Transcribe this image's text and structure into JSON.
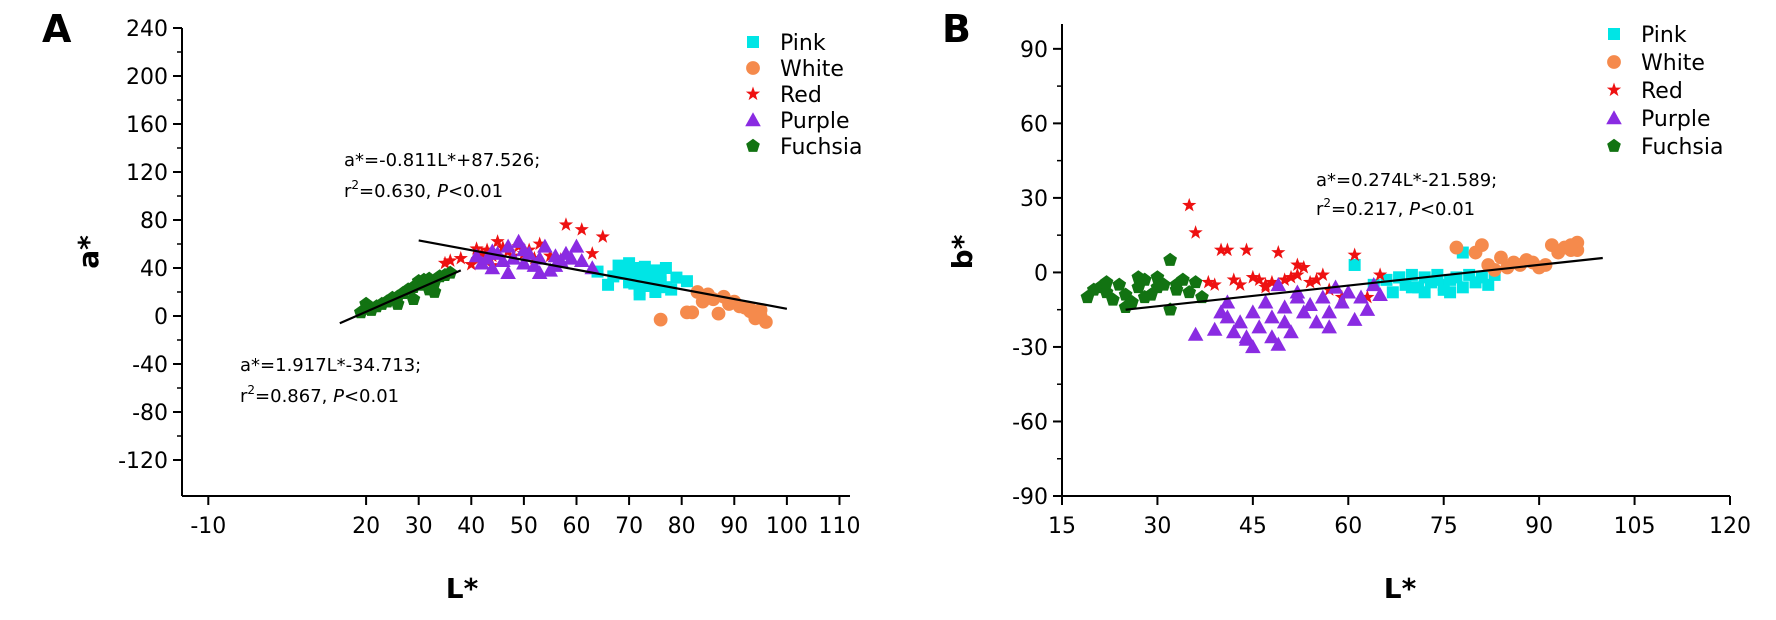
{
  "chart_data": [
    {
      "type": "scatter",
      "panel_label": "A",
      "xlabel": "L*",
      "ylabel": "a*",
      "xlim": [
        -15,
        112
      ],
      "ylim": [
        -150,
        240
      ],
      "xticks": [
        "-10",
        "20",
        "30",
        "40",
        "50",
        "60",
        "70",
        "80",
        "90",
        "100",
        "110"
      ],
      "xtick_values": [
        -10,
        20,
        30,
        40,
        50,
        60,
        70,
        80,
        90,
        100,
        110
      ],
      "yticks": [
        "240",
        "200",
        "160",
        "120",
        "80",
        "40",
        "0",
        "-40",
        "-80",
        "-120"
      ],
      "ytick_values": [
        240,
        200,
        160,
        120,
        80,
        40,
        0,
        -40,
        -80,
        -120
      ],
      "legend": {
        "position": "top-right"
      },
      "series": [
        {
          "name": "Pink",
          "marker": "square",
          "color": "#00e5e5",
          "x": [
            64,
            66,
            68,
            69,
            70,
            70,
            71,
            71,
            72,
            72,
            73,
            73,
            74,
            74,
            75,
            75,
            76,
            76,
            77,
            78,
            79,
            81,
            67,
            72,
            74,
            70,
            75,
            73,
            71,
            77
          ],
          "y": [
            37,
            26,
            42,
            35,
            44,
            30,
            40,
            27,
            38,
            22,
            32,
            41,
            36,
            25,
            30,
            38,
            34,
            28,
            40,
            22,
            32,
            29,
            33,
            18,
            26,
            28,
            20,
            36,
            34,
            24
          ]
        },
        {
          "name": "White",
          "marker": "circle",
          "color": "#f58a4c",
          "x": [
            76,
            81,
            82,
            83,
            84,
            85,
            86,
            87,
            88,
            89,
            90,
            91,
            92,
            93,
            94,
            95,
            95,
            96,
            94,
            93
          ],
          "y": [
            -3,
            3,
            3,
            20,
            12,
            18,
            14,
            2,
            16,
            10,
            12,
            8,
            7,
            4,
            3,
            5,
            0,
            -5,
            -2,
            6
          ]
        },
        {
          "name": "Red",
          "marker": "star",
          "color": "#ee1111",
          "x": [
            35,
            36,
            38,
            40,
            41,
            42,
            43,
            44,
            45,
            46,
            47,
            48,
            49,
            50,
            51,
            52,
            53,
            55,
            58,
            61,
            63,
            65,
            57,
            44
          ],
          "y": [
            44,
            46,
            48,
            43,
            56,
            52,
            55,
            50,
            62,
            57,
            54,
            50,
            58,
            52,
            55,
            48,
            60,
            50,
            76,
            72,
            52,
            66,
            47,
            42
          ]
        },
        {
          "name": "Purple",
          "marker": "triangle",
          "color": "#8a2be2",
          "x": [
            41,
            42,
            43,
            44,
            45,
            46,
            47,
            48,
            49,
            50,
            51,
            52,
            53,
            54,
            55,
            56,
            57,
            58,
            59,
            60,
            61,
            63,
            47,
            50,
            53,
            44,
            56
          ],
          "y": [
            50,
            44,
            48,
            54,
            52,
            46,
            58,
            48,
            62,
            44,
            52,
            42,
            48,
            58,
            38,
            50,
            46,
            52,
            48,
            58,
            46,
            40,
            36,
            55,
            36,
            40,
            42
          ]
        },
        {
          "name": "Fuchsia",
          "marker": "pentagon",
          "color": "#127312",
          "x": [
            19,
            20,
            21,
            22,
            23,
            24,
            25,
            26,
            27,
            28,
            29,
            30,
            30,
            31,
            32,
            33,
            33,
            34,
            35,
            36,
            29,
            31,
            32,
            26,
            24,
            20
          ],
          "y": [
            3,
            10,
            5,
            8,
            10,
            12,
            15,
            16,
            19,
            22,
            24,
            26,
            29,
            30,
            31,
            28,
            20,
            33,
            34,
            36,
            14,
            26,
            22,
            10,
            12,
            6
          ]
        }
      ],
      "fit_lines": [
        {
          "x": [
            15,
            38
          ],
          "y": [
            -6,
            38
          ]
        },
        {
          "x": [
            30,
            100
          ],
          "y": [
            63,
            6
          ]
        }
      ],
      "annotations": [
        {
          "line1": "a*=-0.811L*+87.526;",
          "line2_pre": "r",
          "line2_sup": "2",
          "line2_mid": "=0.630, ",
          "line2_it": "P",
          "line2_post": "<0.01"
        },
        {
          "line1": "a*=1.917L*-34.713;",
          "line2_pre": "r",
          "line2_sup": "2",
          "line2_mid": "=0.867, ",
          "line2_it": "P",
          "line2_post": "<0.01"
        }
      ]
    },
    {
      "type": "scatter",
      "panel_label": "B",
      "xlabel": "L*",
      "ylabel": "b*",
      "xlim": [
        15,
        120
      ],
      "ylim": [
        -90,
        100
      ],
      "xticks": [
        "15",
        "30",
        "45",
        "60",
        "75",
        "90",
        "105",
        "120"
      ],
      "xtick_values": [
        15,
        30,
        45,
        60,
        75,
        90,
        105,
        120
      ],
      "yticks": [
        "90",
        "60",
        "30",
        "0",
        "-30",
        "-60",
        "-90"
      ],
      "ytick_values": [
        90,
        60,
        30,
        0,
        -30,
        -60,
        -90
      ],
      "legend": {
        "position": "top-right"
      },
      "series": [
        {
          "name": "Pink",
          "marker": "square",
          "color": "#00e5e5",
          "x": [
            61,
            64,
            66,
            67,
            68,
            69,
            70,
            71,
            72,
            72,
            73,
            74,
            75,
            75,
            76,
            77,
            78,
            78,
            79,
            80,
            81,
            82,
            83,
            74,
            70,
            76,
            68
          ],
          "y": [
            3,
            -5,
            -3,
            -8,
            -2,
            -5,
            -1,
            -6,
            -2,
            -8,
            -4,
            -1,
            -5,
            -7,
            -3,
            -2,
            -6,
            8,
            -1,
            -4,
            -2,
            -5,
            -1,
            -3,
            -6,
            -8,
            -2
          ]
        },
        {
          "name": "White",
          "marker": "circle",
          "color": "#f58a4c",
          "x": [
            77,
            80,
            81,
            82,
            83,
            84,
            85,
            86,
            87,
            88,
            89,
            90,
            91,
            92,
            93,
            94,
            95,
            96,
            96,
            95
          ],
          "y": [
            10,
            8,
            11,
            3,
            1,
            6,
            2,
            4,
            3,
            5,
            4,
            2,
            3,
            11,
            8,
            10,
            9,
            12,
            9,
            11
          ]
        },
        {
          "name": "Red",
          "marker": "star",
          "color": "#ee1111",
          "x": [
            35,
            36,
            38,
            39,
            40,
            41,
            42,
            43,
            44,
            45,
            46,
            47,
            48,
            49,
            50,
            51,
            52,
            53,
            54,
            55,
            56,
            57,
            59,
            61,
            63,
            65,
            52,
            47
          ],
          "y": [
            27,
            16,
            -4,
            -5,
            9,
            9,
            -3,
            -5,
            9,
            -2,
            -3,
            -5,
            -4,
            8,
            -3,
            -2,
            3,
            2,
            -4,
            -3,
            -1,
            -7,
            -10,
            7,
            -10,
            -1,
            -1,
            -6
          ]
        },
        {
          "name": "Purple",
          "marker": "triangle",
          "color": "#8a2be2",
          "x": [
            36,
            39,
            40,
            41,
            42,
            43,
            44,
            45,
            45,
            46,
            47,
            48,
            48,
            49,
            50,
            50,
            51,
            52,
            53,
            54,
            55,
            56,
            57,
            58,
            59,
            60,
            61,
            62,
            63,
            64,
            65,
            44,
            49,
            52,
            57,
            41
          ],
          "y": [
            -25,
            -23,
            -16,
            -18,
            -24,
            -20,
            -27,
            -16,
            -30,
            -22,
            -12,
            -18,
            -26,
            -29,
            -14,
            -20,
            -24,
            -10,
            -16,
            -13,
            -20,
            -10,
            -16,
            -6,
            -12,
            -8,
            -19,
            -10,
            -15,
            -5,
            -9,
            -26,
            -5,
            -8,
            -22,
            -12
          ]
        },
        {
          "name": "Fuchsia",
          "marker": "pentagon",
          "color": "#127312",
          "x": [
            19,
            20,
            21,
            22,
            23,
            24,
            25,
            26,
            27,
            28,
            29,
            30,
            31,
            32,
            33,
            34,
            35,
            36,
            37,
            25,
            27,
            30,
            32,
            33,
            28,
            22
          ],
          "y": [
            -10,
            -7,
            -6,
            -8,
            -11,
            -5,
            -9,
            -12,
            -6,
            -3,
            -9,
            -2,
            -5,
            5,
            -7,
            -3,
            -8,
            -4,
            -10,
            -14,
            -2,
            -6,
            -15,
            -5,
            -10,
            -4
          ]
        }
      ],
      "fit_lines": [
        {
          "x": [
            25,
            100
          ],
          "y": [
            -15,
            5.8
          ]
        }
      ],
      "annotations": [
        {
          "line1": "a*=0.274L*-21.589;",
          "line2_pre": "r",
          "line2_sup": "2",
          "line2_mid": "=0.217, ",
          "line2_it": "P",
          "line2_post": "<0.01"
        }
      ]
    }
  ]
}
